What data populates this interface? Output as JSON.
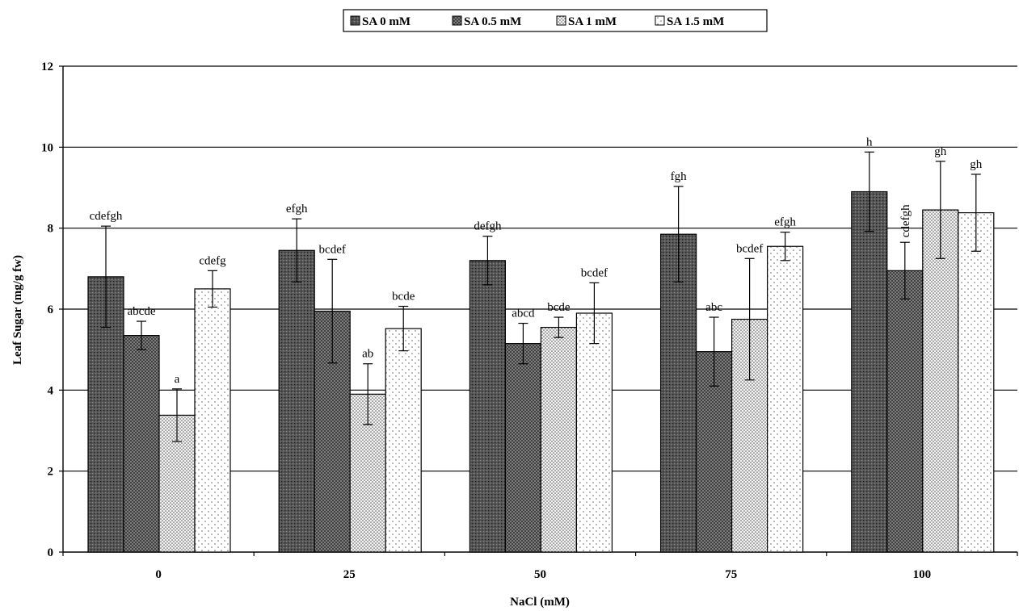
{
  "chart_data": {
    "type": "bar",
    "title": "",
    "xlabel": "NaCl (mM)",
    "ylabel": "Leaf Sugar (mg/g fw)",
    "ylim": [
      0,
      12
    ],
    "yticks": [
      0,
      2,
      4,
      6,
      8,
      10,
      12
    ],
    "grid": true,
    "legend_position": "top-center",
    "categories": [
      "0",
      "25",
      "50",
      "75",
      "100"
    ],
    "series": [
      {
        "name": "SA 0 mM",
        "pattern": "dark-dots",
        "values": [
          6.8,
          7.45,
          7.2,
          7.85,
          8.9
        ],
        "errors": [
          1.25,
          0.78,
          0.6,
          1.18,
          0.98
        ],
        "labels": [
          "cdefgh",
          "efgh",
          "defgh",
          "fgh",
          "h"
        ]
      },
      {
        "name": "SA 0.5 mM",
        "pattern": "crosshatch",
        "values": [
          5.35,
          5.95,
          5.15,
          4.95,
          6.95
        ],
        "errors": [
          0.35,
          1.28,
          0.5,
          0.85,
          0.7
        ],
        "labels": [
          "abcde",
          "bcdef",
          "abcd",
          "abc",
          "cdefgh"
        ]
      },
      {
        "name": "SA 1 mM",
        "pattern": "fine-dots",
        "values": [
          3.38,
          3.9,
          5.55,
          5.75,
          8.45
        ],
        "errors": [
          0.65,
          0.75,
          0.25,
          1.5,
          1.2
        ],
        "labels": [
          "a",
          "ab",
          "bcde",
          "bcdef",
          "gh"
        ]
      },
      {
        "name": "SA 1.5 mM",
        "pattern": "sparse-dots",
        "values": [
          6.5,
          5.52,
          5.9,
          7.55,
          8.38
        ],
        "errors": [
          0.45,
          0.55,
          0.75,
          0.35,
          0.95
        ],
        "labels": [
          "cdefg",
          "bcde",
          "bcdef",
          "efgh",
          "gh"
        ]
      }
    ]
  }
}
